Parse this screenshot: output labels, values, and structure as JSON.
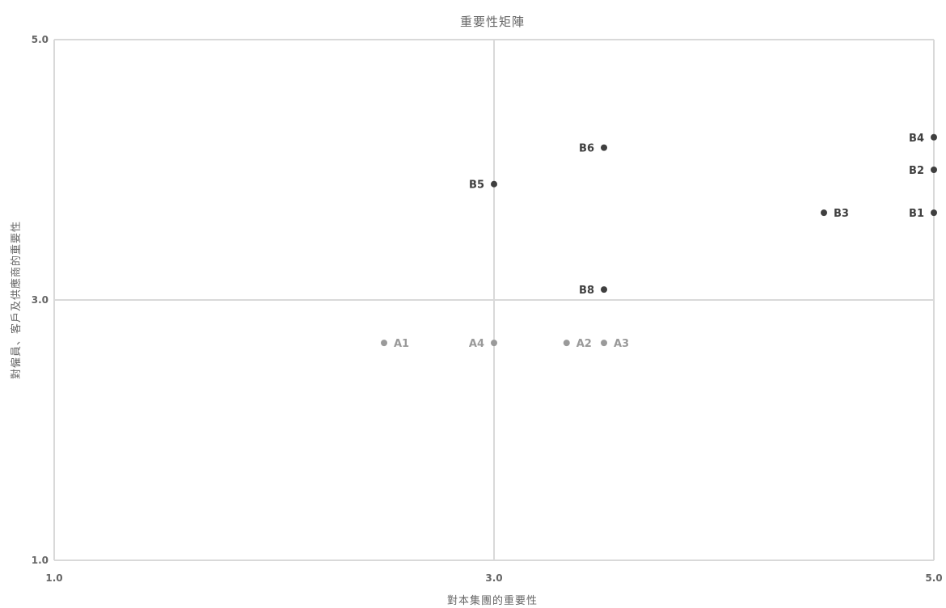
{
  "chart_data": {
    "type": "scatter",
    "title": "重要性矩陣",
    "xlabel": "對本集團的重要性",
    "ylabel": "對僱員、客戶及供應商的重要性",
    "xlim": [
      1.0,
      5.0
    ],
    "ylim": [
      1.0,
      5.0
    ],
    "x_ticks": [
      "1.0",
      "3.0",
      "5.0"
    ],
    "y_ticks": [
      "1.0",
      "3.0",
      "5.0"
    ],
    "grid": true,
    "colors": {
      "group_a": "#9a9a9a",
      "group_b": "#3f3f3f",
      "axis": "#d9d9d9",
      "text": "#666666"
    },
    "points": [
      {
        "label": "A1",
        "x": 2.5,
        "y": 2.67,
        "group": "a",
        "label_side": "right"
      },
      {
        "label": "A4",
        "x": 3.0,
        "y": 2.67,
        "group": "a",
        "label_side": "left"
      },
      {
        "label": "A2",
        "x": 3.33,
        "y": 2.67,
        "group": "a",
        "label_side": "right"
      },
      {
        "label": "A3",
        "x": 3.5,
        "y": 2.67,
        "group": "a",
        "label_side": "right"
      },
      {
        "label": "B8",
        "x": 3.5,
        "y": 3.08,
        "group": "b",
        "label_side": "left"
      },
      {
        "label": "B5",
        "x": 3.0,
        "y": 3.89,
        "group": "b",
        "label_side": "left"
      },
      {
        "label": "B6",
        "x": 3.5,
        "y": 4.17,
        "group": "b",
        "label_side": "left"
      },
      {
        "label": "B3",
        "x": 4.5,
        "y": 3.67,
        "group": "b",
        "label_side": "right"
      },
      {
        "label": "B1",
        "x": 5.0,
        "y": 3.67,
        "group": "b",
        "label_side": "left"
      },
      {
        "label": "B2",
        "x": 5.0,
        "y": 4.0,
        "group": "b",
        "label_side": "left"
      },
      {
        "label": "B4",
        "x": 5.0,
        "y": 4.25,
        "group": "b",
        "label_side": "left"
      }
    ]
  }
}
